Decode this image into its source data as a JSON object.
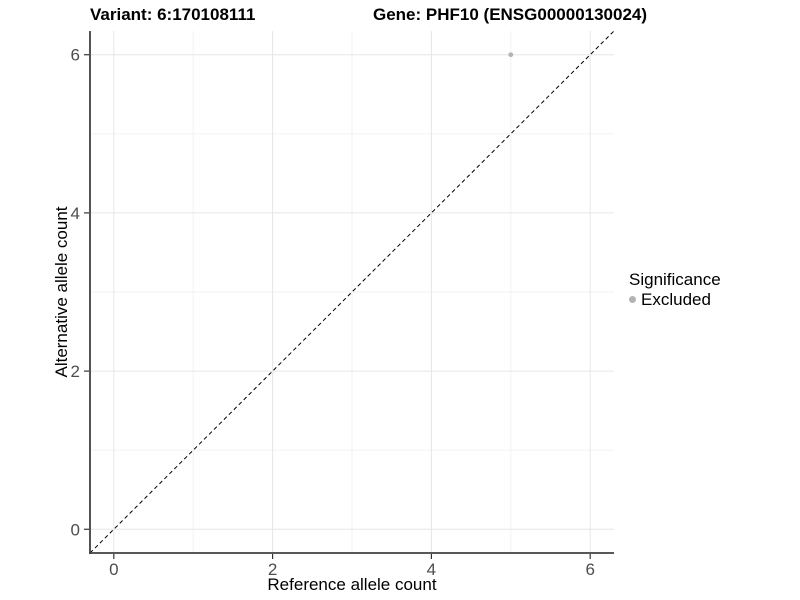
{
  "figure": {
    "titles": [
      {
        "text": "Variant: 6:170108111"
      },
      {
        "text": "Gene: PHF10 (ENSG00000130024)"
      }
    ]
  },
  "chart_data": {
    "type": "scatter",
    "xlabel": "Reference allele count",
    "ylabel": "Alternative allele count",
    "xlim": [
      -0.3,
      6.3
    ],
    "ylim": [
      -0.3,
      6.3
    ],
    "x_major_ticks": [
      0,
      2,
      4,
      6
    ],
    "x_minor_ticks": [
      1,
      3,
      5
    ],
    "y_major_ticks": [
      0,
      2,
      4,
      6
    ],
    "y_minor_ticks": [
      1,
      3,
      5
    ],
    "grid": true,
    "series": [
      {
        "name": "Excluded",
        "color": "#b3b3b3",
        "points": [
          {
            "x": 5,
            "y": 6
          }
        ]
      }
    ],
    "reference_line": {
      "type": "identity",
      "slope": 1,
      "intercept": 0,
      "style": "dashed",
      "color": "#000000"
    },
    "legend": {
      "title": "Significance",
      "position": "right",
      "items": [
        {
          "label": "Excluded",
          "color": "#b3b3b3"
        }
      ]
    },
    "style_colors": {
      "major_grid": "#e6e6e6",
      "minor_grid": "#f2f2f2",
      "axis_line": "#404040",
      "tick_mark": "#333333",
      "tick_label": "#4d4d4d"
    }
  }
}
